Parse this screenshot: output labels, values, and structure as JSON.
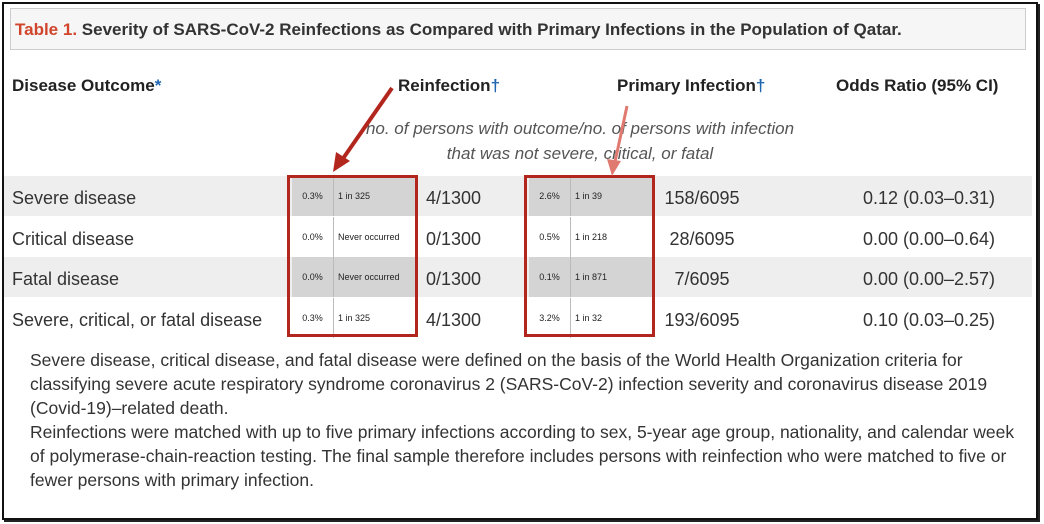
{
  "title": {
    "label": "Table 1.",
    "text": "Severity of SARS-CoV-2 Reinfections as Compared with Primary Infections in the Population of Qatar."
  },
  "table": {
    "headers": {
      "outcome": "Disease Outcome",
      "outcome_mark": "*",
      "reinfection": "Reinfection",
      "reinfection_mark": "†",
      "primary": "Primary Infection",
      "primary_mark": "†",
      "odds_ratio": "Odds Ratio (95% CI)"
    },
    "unit_note": "no. of persons with outcome/no. of persons with infection that was not severe, critical, or fatal",
    "rows": [
      {
        "outcome": "Severe disease",
        "reinfection_pct": "0.3%",
        "reinfection_rate": "1 in 325",
        "reinfection": "4/1300",
        "primary_pct": "2.6%",
        "primary_rate": "1 in 39",
        "primary": "158/6095",
        "odds_ratio": "0.12 (0.03–0.31)"
      },
      {
        "outcome": "Critical disease",
        "reinfection_pct": "0.0%",
        "reinfection_rate": "Never occurred",
        "reinfection": "0/1300",
        "primary_pct": "0.5%",
        "primary_rate": "1 in 218",
        "primary": "28/6095",
        "odds_ratio": "0.00 (0.00–0.64)"
      },
      {
        "outcome": "Fatal disease",
        "reinfection_pct": "0.0%",
        "reinfection_rate": "Never occurred",
        "reinfection": "0/1300",
        "primary_pct": "0.1%",
        "primary_rate": "1 in 871",
        "primary": "7/6095",
        "odds_ratio": "0.00 (0.00–2.57)"
      },
      {
        "outcome": "Severe, critical, or fatal disease",
        "reinfection_pct": "0.3%",
        "reinfection_rate": "1 in 325",
        "reinfection": "4/1300",
        "primary_pct": "3.2%",
        "primary_rate": "1 in 32",
        "primary": "193/6095",
        "odds_ratio": "0.10 (0.03–0.25)"
      }
    ]
  },
  "footnotes": [
    "Severe disease, critical disease, and fatal disease were defined on the basis of the World Health Organization criteria for classifying severe acute respiratory syndrome coronavirus 2 (SARS-CoV-2) infection severity and coronavirus disease 2019 (Covid-19)–related death.",
    "Reinfections were matched with up to five primary infections according to sex, 5-year age group, nationality, and calendar week of polymerase-chain-reaction testing. The final sample therefore includes persons with reinfection who were matched to five or fewer persons with primary infection."
  ]
}
